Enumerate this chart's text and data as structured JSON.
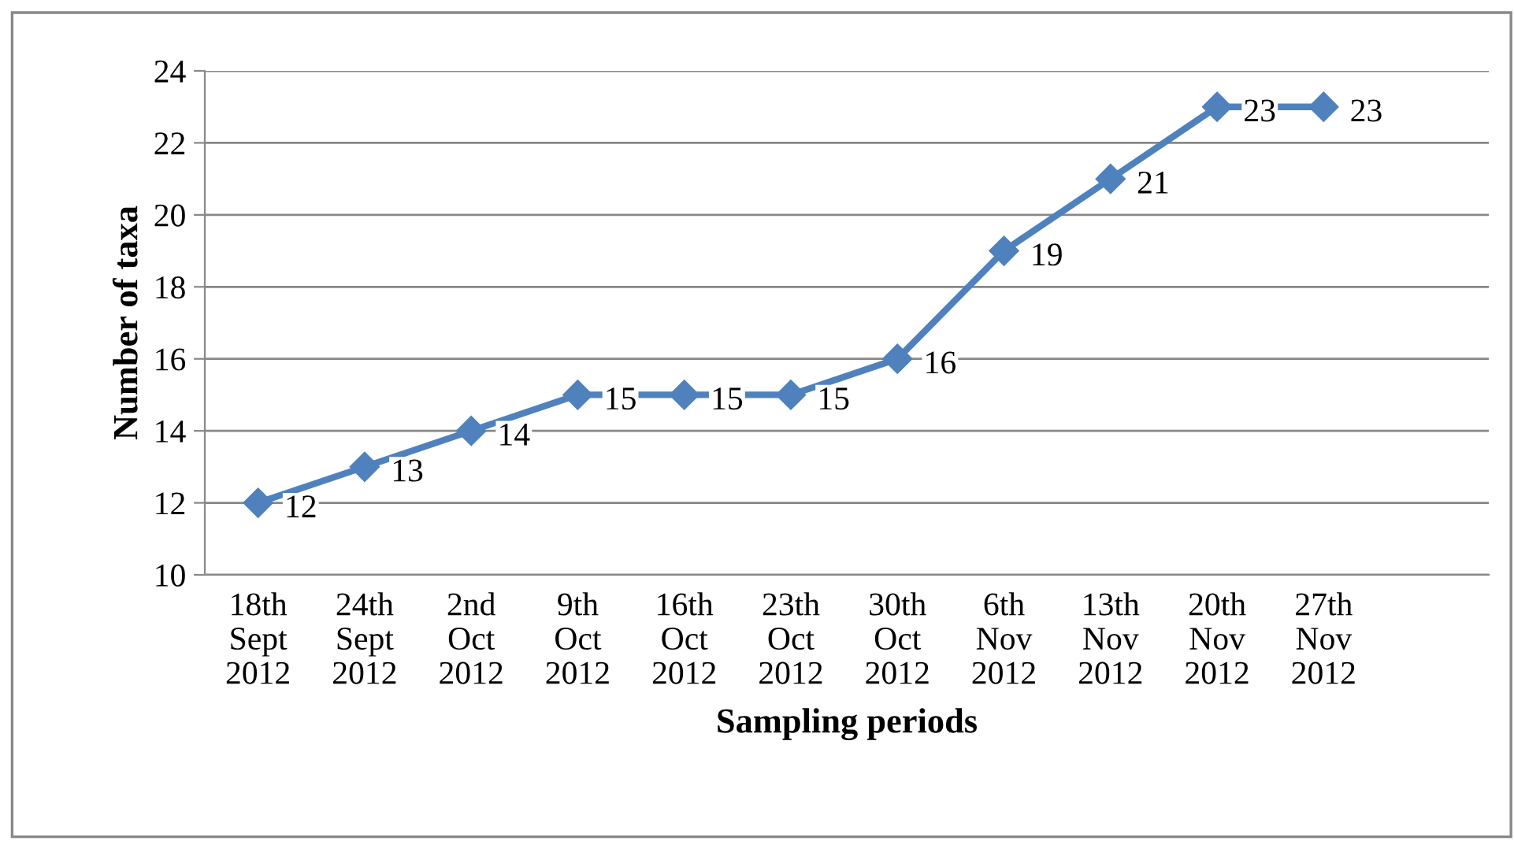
{
  "chart_data": {
    "type": "line",
    "xlabel": "Sampling periods",
    "ylabel": "Number of taxa",
    "categories": [
      "18th\nSept\n2012",
      "24th\nSept\n2012",
      "2nd\nOct\n2012",
      "9th\nOct\n2012",
      "16th\nOct\n2012",
      "23th\nOct\n2012",
      "30th\nOct\n2012",
      "6th\nNov\n2012",
      "13th\nNov\n2012",
      "20th\nNov\n2012",
      "27th\nNov\n2012"
    ],
    "series": [
      {
        "color": "#4f81bd",
        "values": [
          12,
          13,
          14,
          15,
          15,
          15,
          16,
          19,
          21,
          23,
          23
        ]
      }
    ],
    "ylim": [
      10,
      24
    ],
    "yticks": [
      10,
      12,
      14,
      16,
      18,
      20,
      22,
      24
    ],
    "grid": "y",
    "marker": "diamond",
    "line_style": "solid",
    "data_labels": true
  }
}
